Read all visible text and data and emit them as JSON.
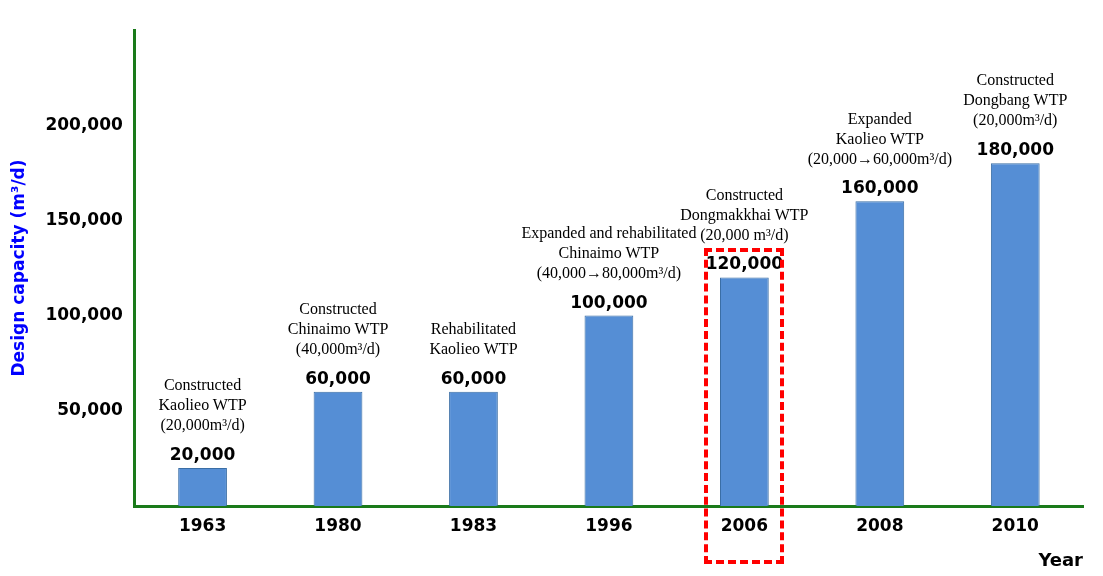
{
  "chart_data": {
    "type": "bar",
    "categories": [
      "1963",
      "1980",
      "1983",
      "1996",
      "2006",
      "2008",
      "2010"
    ],
    "values": [
      20000,
      60000,
      60000,
      100000,
      120000,
      160000,
      180000
    ],
    "color": "#558ed5",
    "ylim": [
      0,
      250000
    ],
    "yticks": [
      {
        "value": 50000,
        "label": "50,000"
      },
      {
        "value": 100000,
        "label": "100,000"
      },
      {
        "value": 150000,
        "label": "150,000"
      },
      {
        "value": 200000,
        "label": "200,000"
      }
    ],
    "value_labels": [
      "20,000",
      "60,000",
      "60,000",
      "100,000",
      "120,000",
      "160,000",
      "180,000"
    ],
    "ylabel": "Design capacity (m³/d)",
    "xlabel": "Year",
    "grid": false,
    "legend": false,
    "annotations": [
      "Constructed\nKaolieo WTP\n(20,000m³/d)",
      "Constructed\nChinaimo WTP\n(40,000m³/d)",
      "Rehabilitated\nKaolieo WTP",
      "Expanded and rehabilitated\nChinaimo WTP\n(40,000→80,000m³/d)",
      "Constructed\nDongmakkhai WTP\n(20,000 m³/d)",
      "Expanded\nKaolieo WTP\n(20,000→60,000m³/d)",
      "Constructed\nDongbang WTP\n(20,000m³/d)"
    ]
  }
}
